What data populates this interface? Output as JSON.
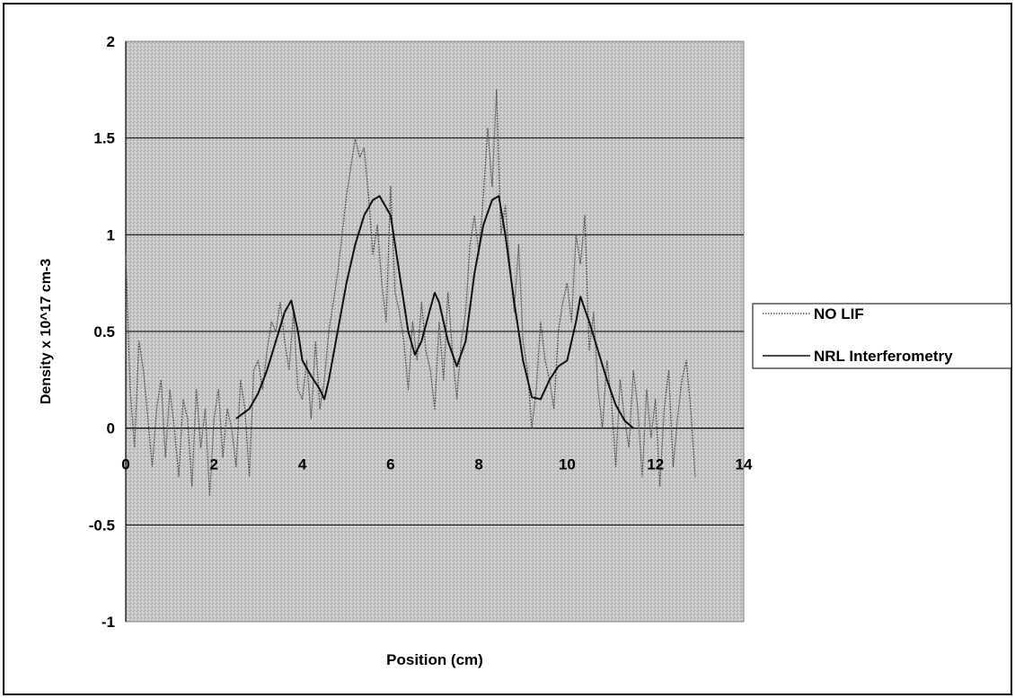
{
  "chart_data": {
    "type": "line",
    "title": "",
    "xlabel": "Position  (cm)",
    "ylabel": "Density x 10^17  cm-3",
    "xlim": [
      0,
      14
    ],
    "ylim": [
      -1,
      2
    ],
    "x_ticks": [
      "0",
      "2",
      "4",
      "6",
      "8",
      "10",
      "12",
      "14"
    ],
    "y_ticks": [
      "-1",
      "-0.5",
      "0",
      "0.5",
      "1",
      "1.5",
      "2"
    ],
    "x_tick_values": [
      0,
      2,
      4,
      6,
      8,
      10,
      12,
      14
    ],
    "y_tick_values": [
      -1,
      -0.5,
      0,
      0.5,
      1,
      1.5,
      2
    ],
    "grid": "horizontal",
    "legend_position": "right",
    "plot_background": "#c8c8c8",
    "series": [
      {
        "name": "NO LIF",
        "style": "dotted",
        "color": "#555555",
        "x": [
          0.0,
          0.1,
          0.2,
          0.3,
          0.4,
          0.5,
          0.6,
          0.7,
          0.8,
          0.9,
          1.0,
          1.1,
          1.2,
          1.3,
          1.4,
          1.5,
          1.6,
          1.7,
          1.8,
          1.9,
          2.0,
          2.1,
          2.2,
          2.3,
          2.4,
          2.5,
          2.6,
          2.7,
          2.8,
          2.9,
          3.0,
          3.1,
          3.2,
          3.3,
          3.4,
          3.5,
          3.6,
          3.7,
          3.8,
          3.9,
          4.0,
          4.1,
          4.2,
          4.3,
          4.4,
          4.5,
          4.6,
          4.7,
          4.8,
          4.9,
          5.0,
          5.1,
          5.2,
          5.3,
          5.4,
          5.5,
          5.6,
          5.7,
          5.8,
          5.9,
          6.0,
          6.1,
          6.2,
          6.3,
          6.4,
          6.5,
          6.6,
          6.7,
          6.8,
          6.9,
          7.0,
          7.1,
          7.2,
          7.3,
          7.4,
          7.5,
          7.6,
          7.7,
          7.8,
          7.9,
          8.0,
          8.1,
          8.2,
          8.3,
          8.4,
          8.5,
          8.6,
          8.7,
          8.8,
          8.9,
          9.0,
          9.1,
          9.2,
          9.3,
          9.4,
          9.5,
          9.6,
          9.7,
          9.8,
          9.9,
          10.0,
          10.1,
          10.2,
          10.3,
          10.4,
          10.5,
          10.6,
          10.7,
          10.8,
          10.9,
          11.0,
          11.1,
          11.2,
          11.3,
          11.4,
          11.5,
          11.6,
          11.7,
          11.8,
          11.9,
          12.0,
          12.1,
          12.2,
          12.3,
          12.4,
          12.5,
          12.6,
          12.7,
          12.8,
          12.9
        ],
        "y": [
          0.9,
          0.2,
          -0.1,
          0.45,
          0.3,
          0.05,
          -0.2,
          0.1,
          0.25,
          -0.15,
          0.2,
          0.0,
          -0.25,
          0.15,
          0.05,
          -0.3,
          0.2,
          -0.1,
          0.1,
          -0.35,
          0.05,
          0.2,
          -0.15,
          0.1,
          0.0,
          -0.2,
          0.25,
          0.1,
          -0.25,
          0.3,
          0.35,
          0.2,
          0.4,
          0.55,
          0.5,
          0.65,
          0.45,
          0.3,
          0.6,
          0.2,
          0.15,
          0.35,
          0.05,
          0.45,
          0.1,
          0.25,
          0.5,
          0.65,
          0.8,
          1.0,
          1.2,
          1.35,
          1.5,
          1.4,
          1.45,
          1.2,
          0.9,
          1.05,
          0.75,
          0.55,
          1.25,
          0.7,
          0.6,
          0.45,
          0.2,
          0.55,
          0.35,
          0.65,
          0.4,
          0.3,
          0.1,
          0.55,
          0.25,
          0.7,
          0.4,
          0.15,
          0.45,
          0.6,
          0.95,
          1.1,
          0.9,
          1.2,
          1.55,
          1.25,
          1.75,
          1.0,
          1.15,
          0.85,
          0.6,
          0.95,
          0.45,
          0.3,
          0.0,
          0.2,
          0.55,
          0.35,
          0.25,
          0.1,
          0.5,
          0.65,
          0.75,
          0.55,
          1.0,
          0.85,
          1.1,
          0.4,
          0.6,
          0.2,
          0.0,
          0.35,
          0.15,
          -0.2,
          0.25,
          0.05,
          -0.1,
          0.3,
          0.1,
          -0.25,
          0.2,
          -0.05,
          0.15,
          -0.3,
          0.1,
          0.3,
          -0.2,
          0.05,
          0.25,
          0.35,
          0.1,
          -0.25
        ]
      },
      {
        "name": "NRL Interferometry",
        "style": "solid",
        "color": "#111111",
        "x": [
          2.5,
          2.8,
          3.0,
          3.2,
          3.4,
          3.6,
          3.75,
          3.9,
          4.0,
          4.2,
          4.4,
          4.5,
          4.6,
          4.8,
          5.0,
          5.2,
          5.4,
          5.6,
          5.75,
          6.0,
          6.2,
          6.4,
          6.55,
          6.7,
          6.9,
          7.0,
          7.1,
          7.3,
          7.5,
          7.7,
          7.9,
          8.1,
          8.3,
          8.45,
          8.6,
          8.8,
          9.0,
          9.2,
          9.4,
          9.6,
          9.8,
          10.0,
          10.2,
          10.3,
          10.5,
          10.7,
          10.9,
          11.1,
          11.3,
          11.5
        ],
        "y": [
          0.05,
          0.1,
          0.18,
          0.3,
          0.45,
          0.6,
          0.66,
          0.5,
          0.35,
          0.27,
          0.2,
          0.15,
          0.25,
          0.5,
          0.75,
          0.95,
          1.1,
          1.18,
          1.2,
          1.1,
          0.8,
          0.5,
          0.38,
          0.45,
          0.62,
          0.7,
          0.65,
          0.45,
          0.32,
          0.45,
          0.8,
          1.05,
          1.18,
          1.2,
          1.0,
          0.65,
          0.35,
          0.16,
          0.15,
          0.25,
          0.32,
          0.35,
          0.55,
          0.68,
          0.55,
          0.4,
          0.25,
          0.12,
          0.04,
          0.0
        ]
      }
    ]
  }
}
